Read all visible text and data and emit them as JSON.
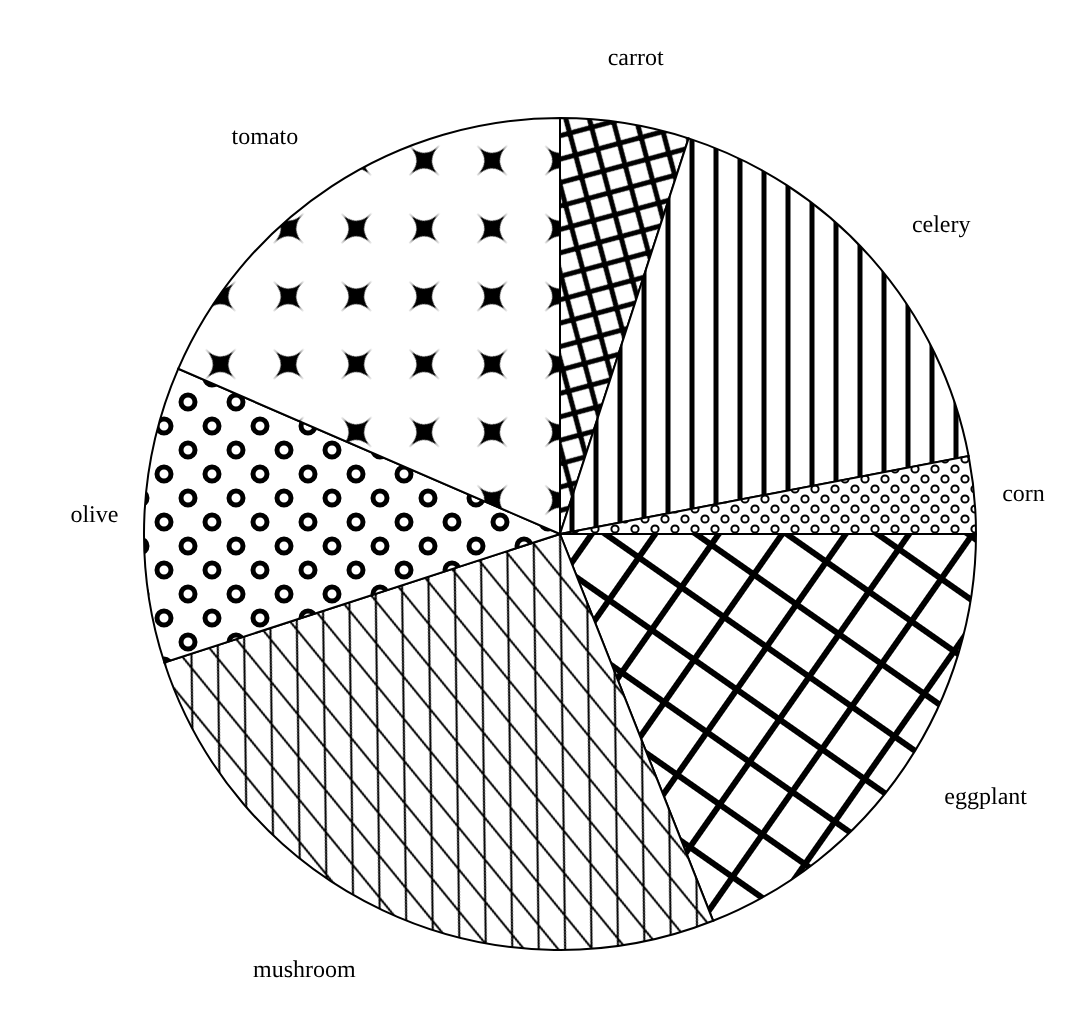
{
  "chart_data": {
    "type": "pie",
    "categories": [
      "carrot",
      "celery",
      "corn",
      "eggplant",
      "mushroom",
      "olive",
      "tomato"
    ],
    "values": [
      5,
      17,
      3,
      19,
      26,
      11.5,
      18.5
    ],
    "colors": [
      "#000000",
      "#000000",
      "#000000",
      "#000000",
      "#000000",
      "#000000",
      "#000000"
    ]
  }
}
